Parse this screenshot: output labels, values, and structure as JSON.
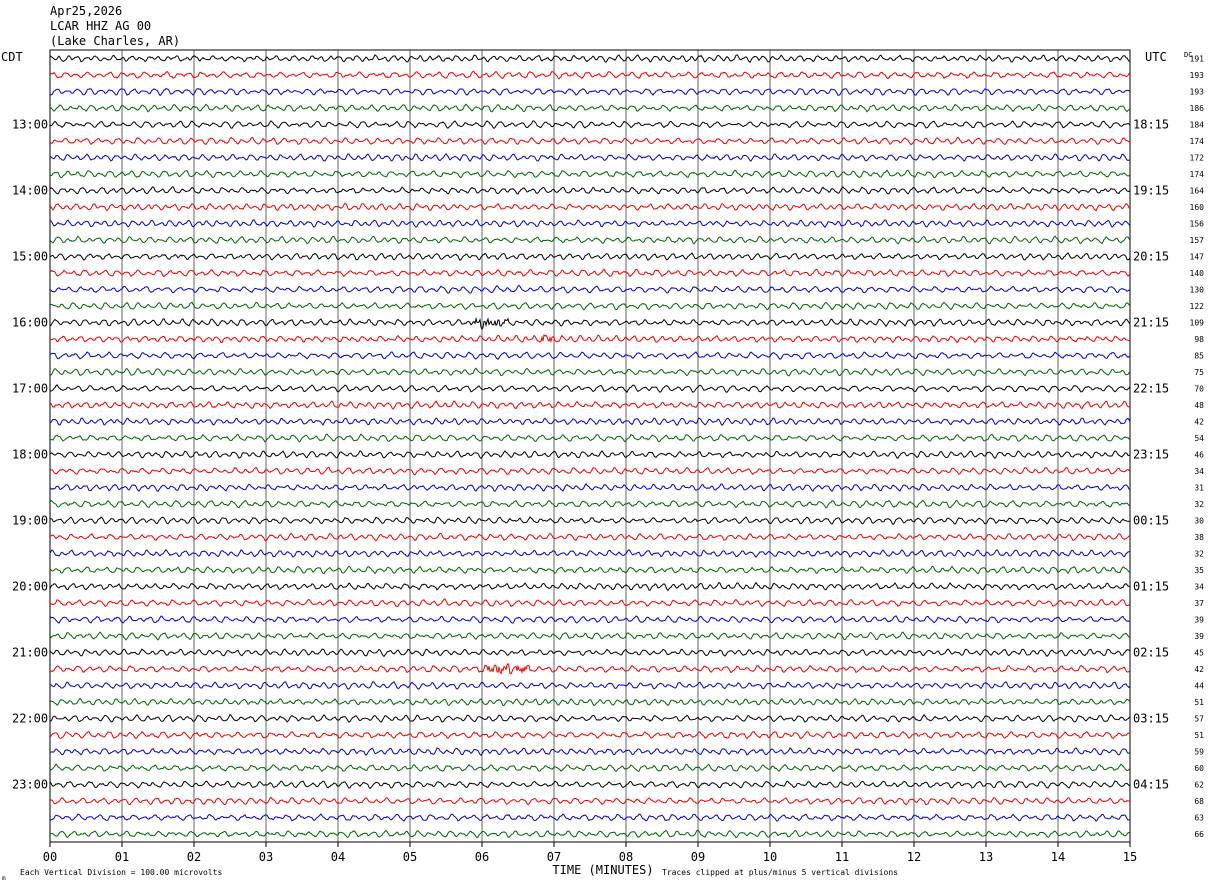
{
  "header": {
    "date": "Apr25,2026",
    "station": "LCAR HHZ AG 00",
    "location": "(Lake Charles, AR)"
  },
  "left_label": "CDT",
  "right_label": "UTC",
  "dc_label": "DC",
  "footer": {
    "scale_note": "Each Vertical Division =  100.00 microvolts",
    "clip_note": "Traces clipped at plus/minus 5 vertical divisions",
    "small_mark": "m"
  },
  "chart_data": {
    "type": "line",
    "title": "",
    "xlabel": "TIME (MINUTES)",
    "ylabel": "",
    "xlim": [
      0,
      15
    ],
    "x_ticks": [
      "00",
      "01",
      "02",
      "03",
      "04",
      "05",
      "06",
      "07",
      "08",
      "09",
      "10",
      "11",
      "12",
      "13",
      "14",
      "15"
    ],
    "trace_count": 48,
    "minutes_per_trace": 15,
    "trace_colors": [
      "#000000",
      "#ee0000",
      "#0000cc",
      "#006400"
    ],
    "grid": true,
    "left_hour_labels": [
      "13:00",
      "14:00",
      "15:00",
      "16:00",
      "17:00",
      "18:00",
      "19:00",
      "20:00",
      "21:00",
      "22:00",
      "23:00"
    ],
    "right_hour_labels": [
      "18:15",
      "19:15",
      "20:15",
      "21:15",
      "22:15",
      "23:15",
      "00:15",
      "01:15",
      "02:15",
      "03:15",
      "04:15"
    ],
    "dc_offsets": [
      "191",
      "193",
      "193",
      "186",
      "184",
      "174",
      "172",
      "174",
      "164",
      "160",
      "156",
      "157",
      "147",
      "140",
      "130",
      "122",
      "109",
      "98",
      "85",
      "75",
      "70",
      "48",
      "42",
      "54",
      "46",
      "34",
      "31",
      "32",
      "30",
      "38",
      "32",
      "35",
      "34",
      "37",
      "39",
      "39",
      "45",
      "42",
      "44",
      "51",
      "57",
      "51",
      "59",
      "60",
      "62",
      "68",
      "63",
      "66"
    ],
    "events": [
      {
        "trace": 16,
        "start_min": 5.8,
        "end_min": 6.4,
        "note": "burst"
      },
      {
        "trace": 17,
        "start_min": 6.8,
        "end_min": 7.0,
        "note": "spike"
      },
      {
        "trace": 37,
        "start_min": 5.9,
        "end_min": 6.8,
        "note": "burst"
      }
    ]
  }
}
